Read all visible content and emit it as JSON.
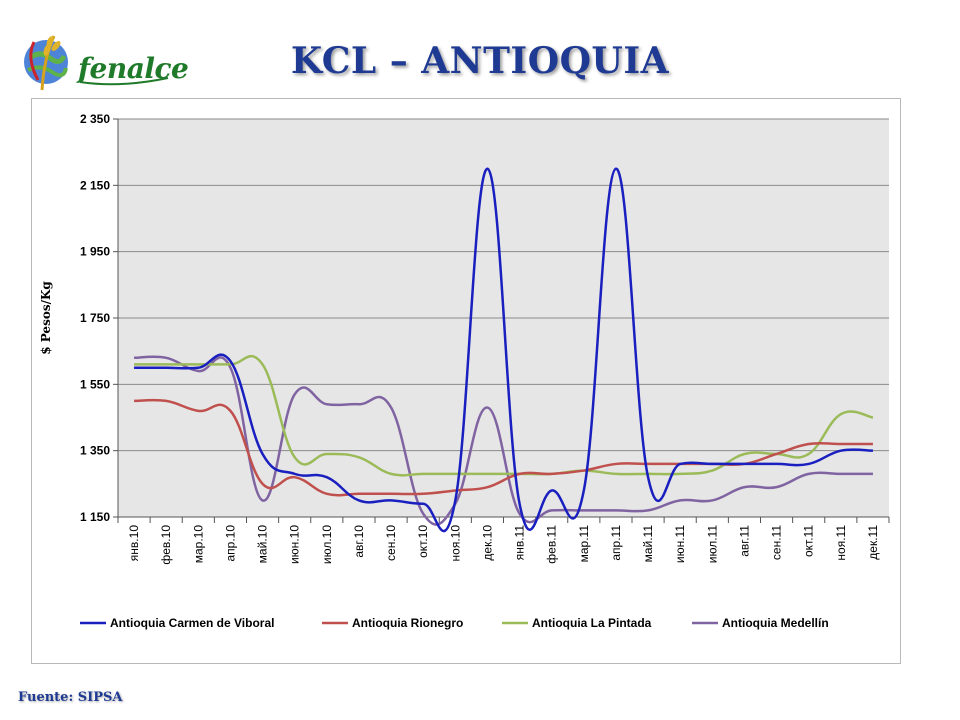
{
  "header": {
    "logo_text": "fenalce",
    "title": "KCL – ANTIOQUIA"
  },
  "footer": {
    "source": "Fuente: SIPSA"
  },
  "chart_data": {
    "type": "line",
    "title": "",
    "ylabel": "$ Pesos/Kg",
    "xlabel": "",
    "ylim": [
      1150,
      2350
    ],
    "yticks": [
      1150,
      1350,
      1550,
      1750,
      1950,
      2150,
      2350
    ],
    "ytick_labels": [
      "1 150",
      "1 350",
      "1 550",
      "1 750",
      "1 950",
      "2 150",
      "2 350"
    ],
    "grid": true,
    "legend_position": "bottom",
    "categories": [
      "янв.10",
      "фев.10",
      "мар.10",
      "апр.10",
      "май.10",
      "июн.10",
      "июл.10",
      "авг.10",
      "сен.10",
      "окт.10",
      "ноя.10",
      "дек.10",
      "янв.11",
      "фев.11",
      "мар.11",
      "апр.11",
      "май.11",
      "июн.11",
      "июл.11",
      "авг.11",
      "сен.11",
      "окт.11",
      "ноя.11",
      "дек.11"
    ],
    "series": [
      {
        "name": "Antioquia Carmen de Viboral",
        "color": "#1a1fbf",
        "values": [
          1600,
          1600,
          1600,
          1620,
          1340,
          1280,
          1270,
          1200,
          1200,
          1190,
          1200,
          2200,
          1190,
          1230,
          1230,
          2200,
          1270,
          1310,
          1310,
          1310,
          1310,
          1310,
          1350,
          1350
        ]
      },
      {
        "name": "Antioquia Rionegro",
        "color": "#c0504d",
        "values": [
          1500,
          1500,
          1470,
          1470,
          1250,
          1270,
          1220,
          1220,
          1220,
          1220,
          1230,
          1240,
          1280,
          1280,
          1290,
          1310,
          1310,
          1310,
          1310,
          1310,
          1340,
          1370,
          1370,
          1370
        ]
      },
      {
        "name": "Antioquia La Pintada",
        "color": "#9bbb59",
        "values": [
          1610,
          1610,
          1610,
          1610,
          1610,
          1330,
          1340,
          1330,
          1280,
          1280,
          1280,
          1280,
          1280,
          1280,
          1290,
          1280,
          1280,
          1280,
          1290,
          1340,
          1340,
          1340,
          1460,
          1450
        ]
      },
      {
        "name": "Antioquia Medellín",
        "color": "#8064a2",
        "values": [
          1630,
          1630,
          1590,
          1600,
          1200,
          1520,
          1490,
          1490,
          1480,
          1160,
          1190,
          1480,
          1160,
          1170,
          1170,
          1170,
          1170,
          1200,
          1200,
          1240,
          1240,
          1280,
          1280,
          1280
        ]
      }
    ]
  }
}
